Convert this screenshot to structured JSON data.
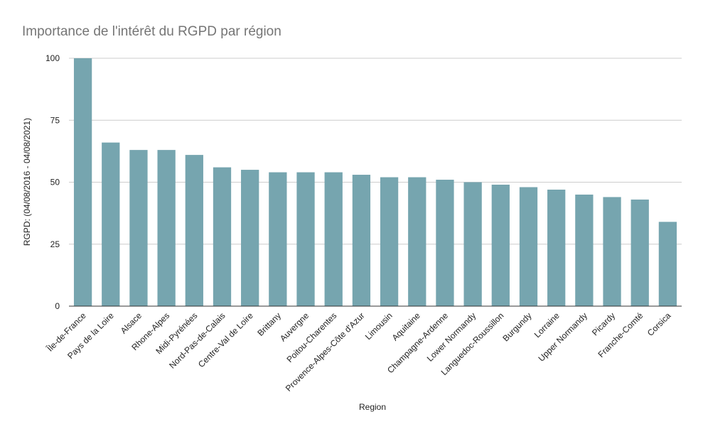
{
  "chart_data": {
    "type": "bar",
    "title": "Importance de l'intérêt du RGPD par région",
    "xlabel": "Region",
    "ylabel": "RGPD: (04/08/2016 - 04/08/2021)",
    "ylim": [
      0,
      100
    ],
    "yticks": [
      "0",
      "25",
      "50",
      "75",
      "100"
    ],
    "grid": true,
    "legend": "none",
    "bar_color": "#76a5af",
    "categories": [
      "Île-de-France",
      "Pays de la Loire",
      "Alsace",
      "Rhone-Alpes",
      "Midi-Pyrénées",
      "Nord-Pas-de-Calais",
      "Centre-Val de Loire",
      "Brittany",
      "Auvergne",
      "Poitou-Charentes",
      "Provence-Alpes-Côte d'Azur",
      "Limousin",
      "Aquitaine",
      "Champagne-Ardenne",
      "Lower Normandy",
      "Languedoc-Roussillon",
      "Burgundy",
      "Lorraine",
      "Upper Normandy",
      "Picardy",
      "Franche-Comté",
      "Corsica"
    ],
    "values": [
      100,
      66,
      63,
      63,
      61,
      56,
      55,
      54,
      54,
      54,
      53,
      52,
      52,
      51,
      50,
      49,
      48,
      47,
      45,
      44,
      43,
      34
    ]
  }
}
